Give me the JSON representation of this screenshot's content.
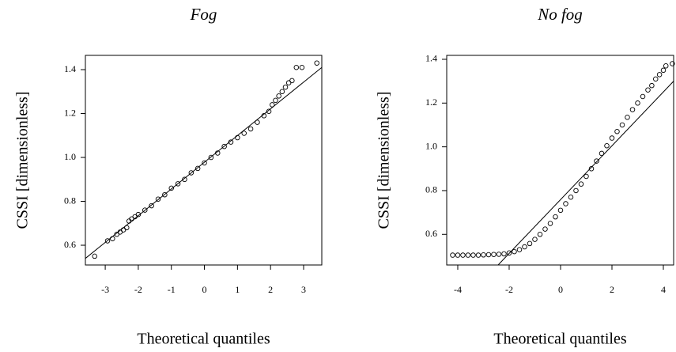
{
  "chart_data": [
    {
      "type": "scatter",
      "title": "Fog",
      "xlabel": "Theoretical quantiles",
      "ylabel": "CSSI [dimensionless]",
      "xlim": [
        -3.6,
        3.55
      ],
      "ylim": [
        0.51,
        1.465
      ],
      "xticks": [
        -3,
        -2,
        -1,
        0,
        1,
        2,
        3
      ],
      "yticks": [
        0.6,
        0.8,
        {
          "value": 1,
          "label": "1.0"
        },
        1.2,
        1.4
      ],
      "color": "#000000",
      "x": [
        -3.32,
        -2.93,
        -2.78,
        -2.65,
        -2.55,
        -2.45,
        -2.35,
        -2.28,
        -2.2,
        -2.1,
        -2.0,
        -1.8,
        -1.6,
        -1.4,
        -1.2,
        -1.0,
        -0.8,
        -0.6,
        -0.4,
        -0.2,
        0,
        0.2,
        0.4,
        0.6,
        0.8,
        1.0,
        1.2,
        1.4,
        1.6,
        1.8,
        1.95,
        2.05,
        2.15,
        2.25,
        2.35,
        2.45,
        2.55,
        2.65,
        2.78,
        2.95,
        3.4
      ],
      "values": [
        0.55,
        0.62,
        0.63,
        0.65,
        0.66,
        0.67,
        0.68,
        0.71,
        0.72,
        0.73,
        0.74,
        0.76,
        0.78,
        0.81,
        0.83,
        0.86,
        0.88,
        0.9,
        0.93,
        0.95,
        0.975,
        1.0,
        1.02,
        1.05,
        1.07,
        1.09,
        1.11,
        1.13,
        1.16,
        1.19,
        1.21,
        1.24,
        1.26,
        1.28,
        1.3,
        1.32,
        1.34,
        1.35,
        1.41,
        1.41,
        1.43
      ],
      "reference_line": {
        "x": [
          -3.6,
          3.55
        ],
        "y": [
          0.54,
          1.41
        ]
      }
    },
    {
      "type": "scatter",
      "title": "No fog",
      "xlabel": "Theoretical quantiles",
      "ylabel": "CSSI [dimensionless]",
      "xlim": [
        -4.43,
        4.4
      ],
      "ylim": [
        0.46,
        1.418
      ],
      "xticks": [
        -4,
        -2,
        0,
        2,
        4
      ],
      "yticks": [
        0.6,
        0.8,
        {
          "value": 1,
          "label": "1.0"
        },
        1.2,
        1.4
      ],
      "color": "#000000",
      "x": [
        -4.2,
        -4.0,
        -3.8,
        -3.6,
        -3.4,
        -3.2,
        -3.0,
        -2.8,
        -2.6,
        -2.4,
        -2.2,
        -2.0,
        -1.8,
        -1.6,
        -1.4,
        -1.2,
        -1.0,
        -0.8,
        -0.6,
        -0.4,
        -0.2,
        0,
        0.2,
        0.4,
        0.6,
        0.8,
        1.0,
        1.2,
        1.4,
        1.6,
        1.8,
        2.0,
        2.2,
        2.4,
        2.6,
        2.8,
        3.0,
        3.2,
        3.4,
        3.55,
        3.7,
        3.85,
        4.0,
        4.1,
        4.35
      ],
      "values": [
        0.505,
        0.505,
        0.505,
        0.505,
        0.505,
        0.505,
        0.506,
        0.507,
        0.508,
        0.509,
        0.511,
        0.515,
        0.521,
        0.53,
        0.543,
        0.558,
        0.577,
        0.6,
        0.624,
        0.65,
        0.68,
        0.71,
        0.74,
        0.77,
        0.8,
        0.83,
        0.865,
        0.9,
        0.935,
        0.97,
        1.005,
        1.04,
        1.07,
        1.1,
        1.135,
        1.17,
        1.2,
        1.23,
        1.26,
        1.28,
        1.31,
        1.33,
        1.35,
        1.37,
        1.38
      ],
      "reference_line": {
        "x": [
          -2.43,
          4.4
        ],
        "y": [
          0.46,
          1.3
        ]
      }
    }
  ]
}
